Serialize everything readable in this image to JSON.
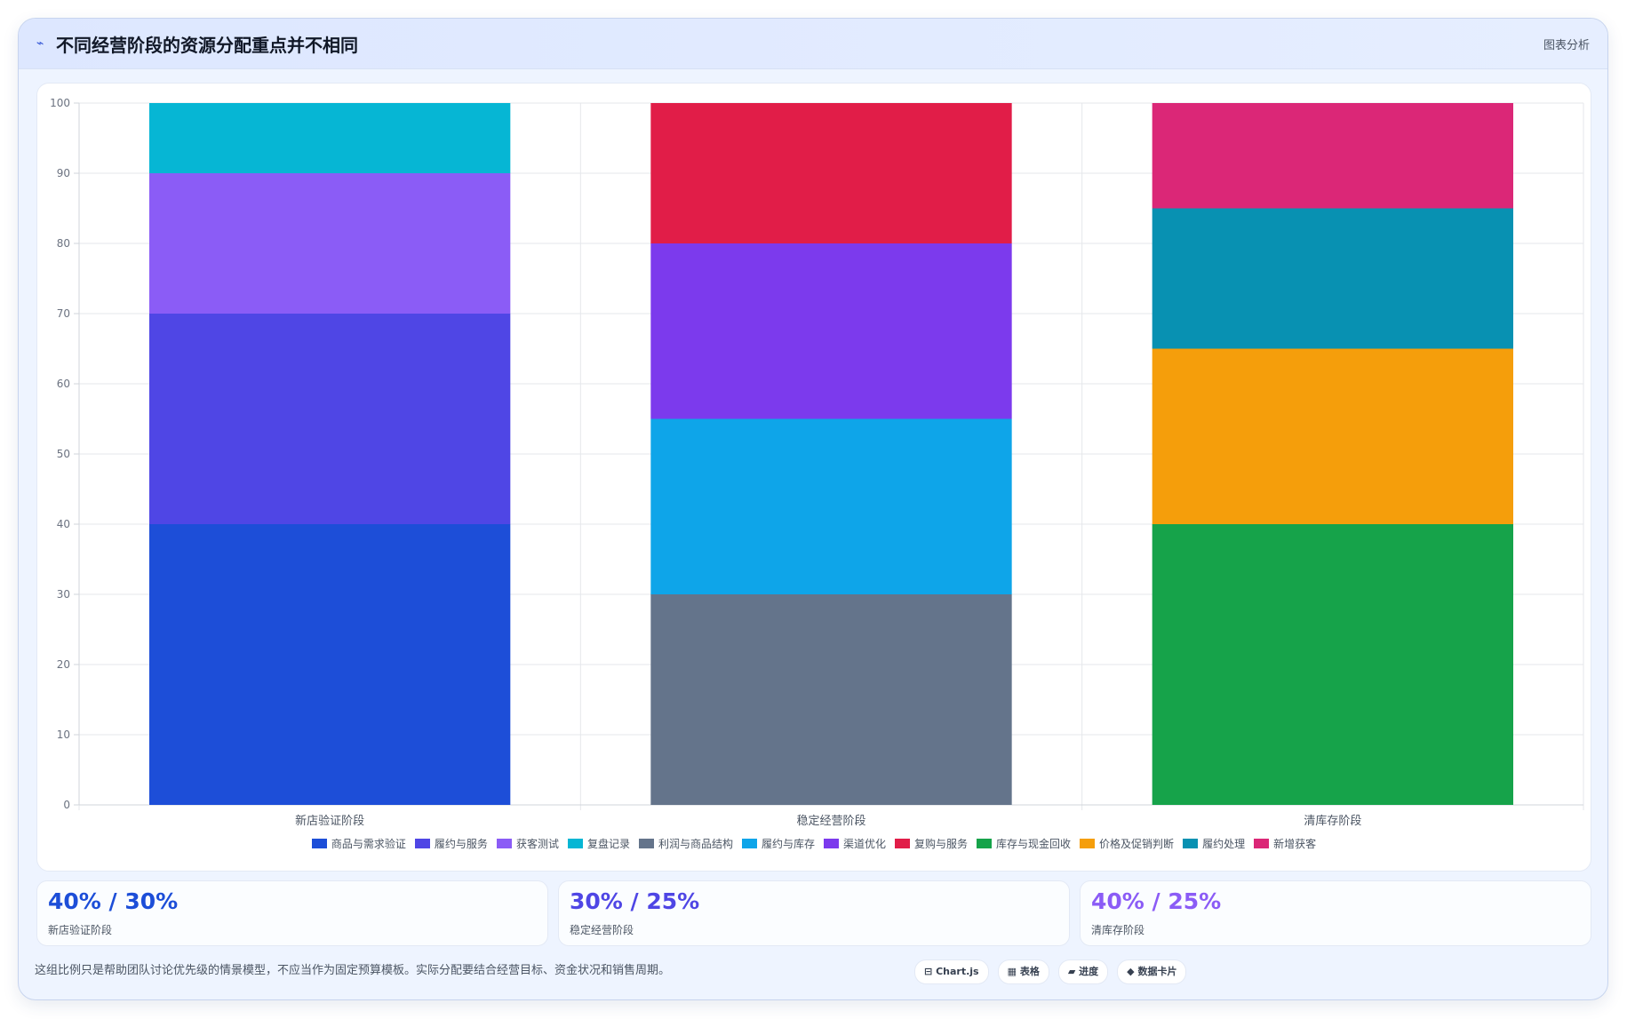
{
  "header": {
    "title_icon": "chart-line-icon",
    "title": "不同经营阶段的资源分配重点并不相同",
    "tag": "图表分析"
  },
  "chart_data": {
    "type": "bar",
    "stacked": true,
    "categories": [
      "新店验证阶段",
      "稳定经营阶段",
      "清库存阶段"
    ],
    "ylim": [
      0,
      100
    ],
    "yticks": [
      0,
      10,
      20,
      30,
      40,
      50,
      60,
      70,
      80,
      90,
      100
    ],
    "grid": true,
    "legend_position": "bottom",
    "series": [
      {
        "name": "商品与需求验证",
        "color": "#1d4ed8",
        "values": [
          40,
          0,
          0
        ]
      },
      {
        "name": "履约与服务",
        "color": "#4f46e5",
        "values": [
          30,
          0,
          0
        ]
      },
      {
        "name": "获客测试",
        "color": "#8b5cf6",
        "values": [
          20,
          0,
          0
        ]
      },
      {
        "name": "复盘记录",
        "color": "#06b6d4",
        "values": [
          10,
          0,
          0
        ]
      },
      {
        "name": "利润与商品结构",
        "color": "#64748b",
        "values": [
          0,
          30,
          0
        ]
      },
      {
        "name": "履约与库存",
        "color": "#0ea5e9",
        "values": [
          0,
          25,
          0
        ]
      },
      {
        "name": "渠道优化",
        "color": "#7c3aed",
        "values": [
          0,
          25,
          0
        ]
      },
      {
        "name": "复购与服务",
        "color": "#e11d48",
        "values": [
          0,
          20,
          0
        ]
      },
      {
        "name": "库存与现金回收",
        "color": "#16a34a",
        "values": [
          0,
          0,
          40
        ]
      },
      {
        "name": "价格及促销判断",
        "color": "#f59e0b",
        "values": [
          0,
          0,
          25
        ]
      },
      {
        "name": "履约处理",
        "color": "#0891b2",
        "values": [
          0,
          0,
          20
        ]
      },
      {
        "name": "新增获客",
        "color": "#db2777",
        "values": [
          0,
          0,
          15
        ]
      }
    ]
  },
  "stats": [
    {
      "value": "40% / 30%",
      "label": "新店验证阶段",
      "color": "#1d4ed8"
    },
    {
      "value": "30% / 25%",
      "label": "稳定经营阶段",
      "color": "#4f46e5"
    },
    {
      "value": "40% / 25%",
      "label": "清库存阶段",
      "color": "#8b5cf6"
    }
  ],
  "footnote": "这组比例只是帮助团队讨论优先级的情景模型，不应当作为固定预算模板。实际分配要结合经营目标、资金状况和销售周期。",
  "buttons": [
    {
      "icon": "chart-icon",
      "glyph": "⊟",
      "label": "Chart.js"
    },
    {
      "icon": "table-icon",
      "glyph": "▦",
      "label": "表格"
    },
    {
      "icon": "progress-icon",
      "glyph": "▰",
      "label": "进度"
    },
    {
      "icon": "card-icon",
      "glyph": "◆",
      "label": "数据卡片"
    }
  ]
}
